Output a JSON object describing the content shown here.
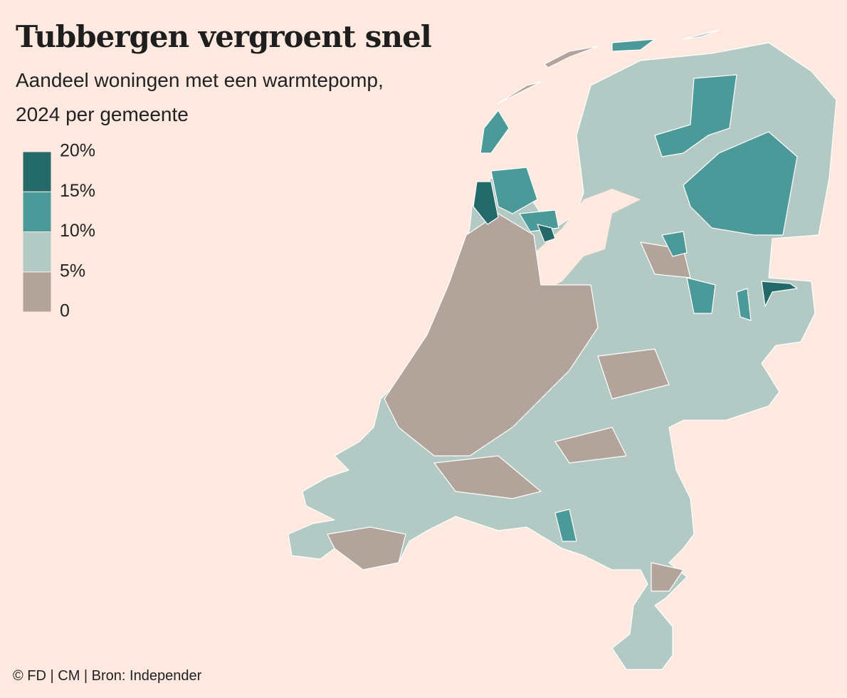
{
  "header": {
    "title": "Tubbergen vergroent snel",
    "subtitle": [
      "Aandeel woningen met een warmtepomp,",
      "2024 per gemeente"
    ]
  },
  "legend": {
    "ticks": [
      0,
      {
        "value": 5,
        "label": "5%"
      },
      {
        "value": 10,
        "label": "10%"
      },
      {
        "value": 15,
        "label": "15%"
      },
      {
        "value": 20,
        "label": "20%"
      }
    ],
    "colors": [
      "#b2a49a",
      "#b3c9c4",
      "#4c9999",
      "#24696a"
    ]
  },
  "footer": {
    "source": "© FD | CM | Bron: Independer"
  }
}
